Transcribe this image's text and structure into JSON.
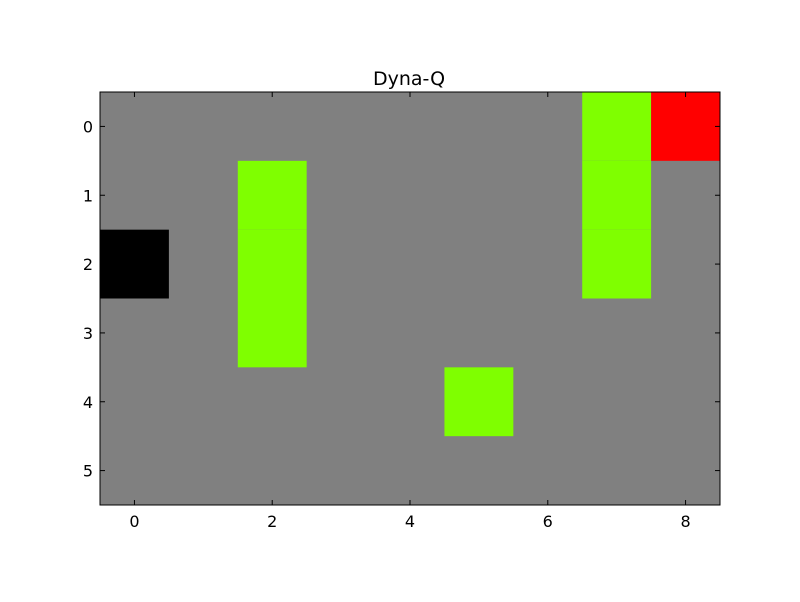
{
  "chart_data": {
    "type": "heatmap",
    "title": "Dyna-Q",
    "xlabel": "",
    "ylabel": "",
    "rows": 6,
    "cols": 9,
    "xlim": [
      -0.5,
      8.5
    ],
    "ylim": [
      5.5,
      -0.5
    ],
    "x_ticks": [
      0,
      2,
      4,
      6,
      8
    ],
    "y_ticks": [
      0,
      1,
      2,
      3,
      4,
      5
    ],
    "grid": false,
    "legend": "none",
    "colors": {
      "empty": "#808080",
      "obstacle": "#7fff00",
      "start": "#000000",
      "goal": "#ff0000"
    },
    "cells": [
      {
        "row": 1,
        "col": 2,
        "kind": "obstacle"
      },
      {
        "row": 2,
        "col": 2,
        "kind": "obstacle"
      },
      {
        "row": 3,
        "col": 2,
        "kind": "obstacle"
      },
      {
        "row": 4,
        "col": 5,
        "kind": "obstacle"
      },
      {
        "row": 0,
        "col": 7,
        "kind": "obstacle"
      },
      {
        "row": 1,
        "col": 7,
        "kind": "obstacle"
      },
      {
        "row": 2,
        "col": 7,
        "kind": "obstacle"
      },
      {
        "row": 2,
        "col": 0,
        "kind": "start"
      },
      {
        "row": 0,
        "col": 8,
        "kind": "goal"
      }
    ]
  }
}
